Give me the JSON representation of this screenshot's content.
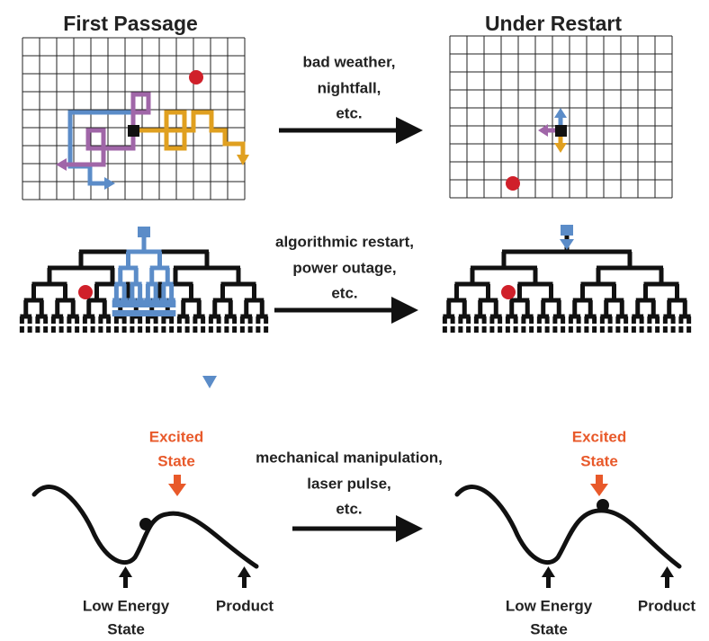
{
  "titles": {
    "left": "First Passage",
    "right": "Under Restart"
  },
  "rows": [
    {
      "arrow_label": [
        "bad weather,",
        "nightfall,",
        "etc."
      ]
    },
    {
      "arrow_label": [
        "algorithmic restart,",
        "power outage,",
        "etc."
      ]
    },
    {
      "arrow_label": [
        "mechanical manipulation,",
        "laser pulse,",
        "etc."
      ]
    }
  ],
  "energy": {
    "left": {
      "excited": [
        "Excited",
        "State"
      ],
      "low": [
        "Low Energy",
        "State"
      ],
      "product": "Product"
    },
    "right": {
      "excited": [
        "Excited",
        "State"
      ],
      "low": [
        "Low Energy",
        "State"
      ],
      "product": "Product"
    }
  }
}
